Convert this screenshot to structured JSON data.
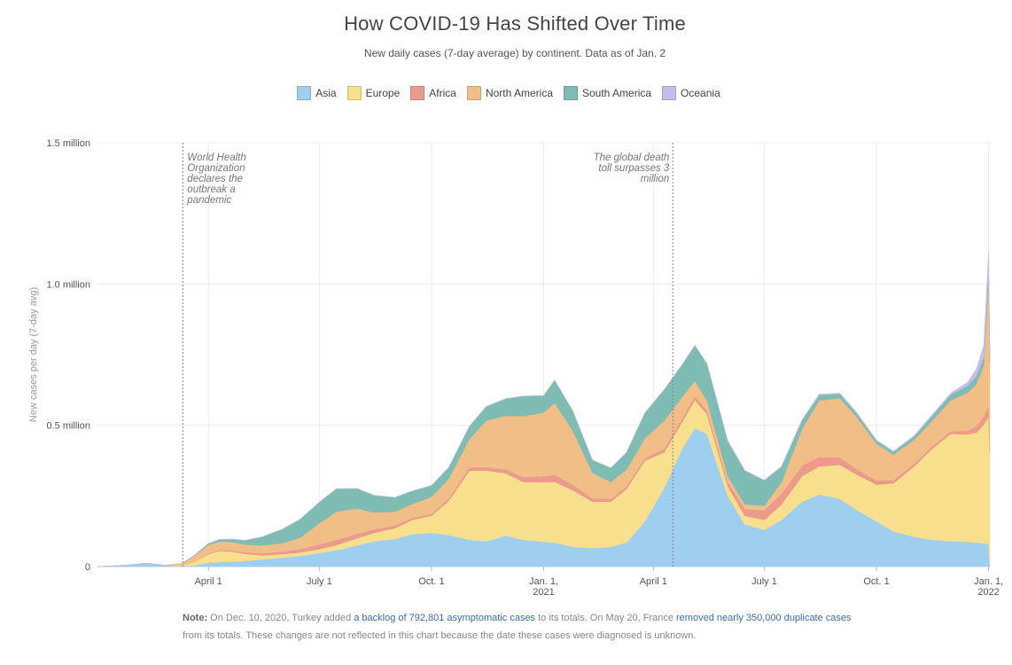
{
  "header": {
    "title": "How COVID-19 Has Shifted Over Time",
    "subtitle": "New daily cases (7-day average) by continent. Data as of Jan. 2"
  },
  "legend": [
    {
      "name": "Asia",
      "color": "#9ecfee"
    },
    {
      "name": "Europe",
      "color": "#f7df8e"
    },
    {
      "name": "Africa",
      "color": "#eb9a8c"
    },
    {
      "name": "North America",
      "color": "#f1be87"
    },
    {
      "name": "South America",
      "color": "#7fbcb4"
    },
    {
      "name": "Oceania",
      "color": "#c3bfe9"
    }
  ],
  "note": {
    "label": "Note:",
    "t1": " On Dec. 10, 2020, Turkey added ",
    "link1": "a backlog of 792,801 asymptomatic cases",
    "t2": " to its totals. On May 20, France ",
    "link2": "removed nearly 350,000 duplicate cases",
    "t3": " from its totals. These changes are not reflected in this chart because the date these cases were diagnosed is unknown."
  },
  "chart_data": {
    "type": "area",
    "stacked": true,
    "title": "How COVID-19 Has Shifted Over Time",
    "ylabel": "New cases per day (7-day avg)",
    "ylim": [
      0,
      1500000
    ],
    "xlim": [
      "2020-01-01",
      "2022-01-02"
    ],
    "grid": true,
    "legend_position": "top",
    "y_ticks": [
      {
        "value": 0,
        "label": "0"
      },
      {
        "value": 500000,
        "label": "0.5 million"
      },
      {
        "value": 1000000,
        "label": "1.0 million"
      },
      {
        "value": 1500000,
        "label": "1.5 million"
      }
    ],
    "x_ticks": [
      {
        "date": "2020-04-01",
        "label": "April 1",
        "sublabel": ""
      },
      {
        "date": "2020-07-01",
        "label": "July 1",
        "sublabel": ""
      },
      {
        "date": "2020-10-01",
        "label": "Oct. 1",
        "sublabel": ""
      },
      {
        "date": "2021-01-01",
        "label": "Jan. 1,",
        "sublabel": "2021"
      },
      {
        "date": "2021-04-01",
        "label": "April 1",
        "sublabel": ""
      },
      {
        "date": "2021-07-01",
        "label": "July 1",
        "sublabel": ""
      },
      {
        "date": "2021-10-01",
        "label": "Oct. 1",
        "sublabel": ""
      },
      {
        "date": "2022-01-01",
        "label": "Jan. 1,",
        "sublabel": "2022"
      }
    ],
    "annotations": [
      {
        "date": "2020-03-11",
        "anchor": "start",
        "lines": [
          "World Health",
          "Organization",
          "declares the",
          "outbreak a",
          "pandemic"
        ]
      },
      {
        "date": "2021-04-17",
        "anchor": "end",
        "lines": [
          "The global death",
          "toll surpasses 3",
          "million"
        ]
      }
    ],
    "x": [
      "2020-01-01",
      "2020-01-25",
      "2020-02-10",
      "2020-02-25",
      "2020-03-10",
      "2020-03-20",
      "2020-04-01",
      "2020-04-10",
      "2020-04-20",
      "2020-05-01",
      "2020-05-15",
      "2020-06-01",
      "2020-06-15",
      "2020-07-01",
      "2020-07-15",
      "2020-08-01",
      "2020-08-15",
      "2020-09-01",
      "2020-09-15",
      "2020-10-01",
      "2020-10-15",
      "2020-11-01",
      "2020-11-15",
      "2020-12-01",
      "2020-12-15",
      "2021-01-01",
      "2021-01-10",
      "2021-01-25",
      "2021-02-10",
      "2021-02-25",
      "2021-03-10",
      "2021-03-25",
      "2021-04-10",
      "2021-04-25",
      "2021-05-05",
      "2021-05-15",
      "2021-06-01",
      "2021-06-15",
      "2021-07-01",
      "2021-07-15",
      "2021-08-01",
      "2021-08-15",
      "2021-09-01",
      "2021-09-15",
      "2021-10-01",
      "2021-10-15",
      "2021-11-01",
      "2021-11-15",
      "2021-12-01",
      "2021-12-15",
      "2021-12-22",
      "2021-12-28",
      "2022-01-01",
      "2022-01-02"
    ],
    "series": [
      {
        "name": "Asia",
        "values": [
          0,
          5000,
          12000,
          4000,
          2000,
          4000,
          14000,
          16000,
          18000,
          20000,
          25000,
          32000,
          38000,
          48000,
          58000,
          75000,
          90000,
          98000,
          115000,
          120000,
          112000,
          95000,
          90000,
          110000,
          95000,
          88000,
          85000,
          70000,
          65000,
          70000,
          85000,
          160000,
          280000,
          420000,
          490000,
          470000,
          250000,
          150000,
          130000,
          165000,
          230000,
          255000,
          240000,
          200000,
          160000,
          125000,
          105000,
          95000,
          90000,
          88000,
          85000,
          82000,
          80000,
          5000
        ]
      },
      {
        "name": "Europe",
        "values": [
          0,
          0,
          0,
          500,
          4000,
          12000,
          30000,
          40000,
          35000,
          25000,
          15000,
          12000,
          12000,
          14000,
          18000,
          25000,
          30000,
          38000,
          50000,
          60000,
          120000,
          245000,
          250000,
          220000,
          205000,
          210000,
          215000,
          200000,
          165000,
          160000,
          190000,
          215000,
          125000,
          95000,
          100000,
          70000,
          35000,
          30000,
          35000,
          55000,
          90000,
          100000,
          120000,
          125000,
          130000,
          170000,
          250000,
          320000,
          380000,
          380000,
          390000,
          420000,
          450000,
          400000
        ]
      },
      {
        "name": "Africa",
        "values": [
          0,
          0,
          0,
          0,
          200,
          1000,
          2500,
          3000,
          4000,
          5000,
          7000,
          9000,
          12000,
          16000,
          19000,
          16000,
          12000,
          9000,
          7000,
          7000,
          8000,
          11000,
          12000,
          14000,
          18000,
          22000,
          25000,
          20000,
          12000,
          9000,
          9000,
          9000,
          12000,
          12000,
          13000,
          13000,
          15000,
          25000,
          35000,
          38000,
          38000,
          33000,
          26000,
          19000,
          15000,
          11000,
          9000,
          8000,
          9000,
          13000,
          22000,
          30000,
          40000,
          20000
        ]
      },
      {
        "name": "North America",
        "values": [
          0,
          0,
          0,
          200,
          4000,
          20000,
          30000,
          30000,
          30000,
          28000,
          28000,
          30000,
          40000,
          75000,
          100000,
          90000,
          60000,
          50000,
          50000,
          60000,
          70000,
          100000,
          165000,
          190000,
          215000,
          225000,
          255000,
          190000,
          90000,
          60000,
          60000,
          70000,
          100000,
          75000,
          55000,
          35000,
          20000,
          15000,
          15000,
          40000,
          130000,
          200000,
          210000,
          185000,
          130000,
          90000,
          85000,
          90000,
          110000,
          135000,
          150000,
          180000,
          450000,
          300000
        ]
      },
      {
        "name": "South America",
        "values": [
          0,
          0,
          0,
          0,
          500,
          1500,
          5000,
          7000,
          10000,
          15000,
          30000,
          50000,
          65000,
          75000,
          80000,
          70000,
          60000,
          50000,
          45000,
          40000,
          40000,
          45000,
          50000,
          60000,
          70000,
          60000,
          80000,
          70000,
          45000,
          50000,
          60000,
          90000,
          110000,
          115000,
          125000,
          130000,
          125000,
          120000,
          90000,
          55000,
          30000,
          20000,
          15000,
          12000,
          10000,
          10000,
          12000,
          18000,
          20000,
          25000,
          28000,
          30000,
          35000,
          20000
        ]
      },
      {
        "name": "Oceania",
        "values": [
          0,
          0,
          0,
          0,
          100,
          300,
          500,
          300,
          100,
          50,
          50,
          50,
          100,
          300,
          700,
          500,
          300,
          100,
          50,
          50,
          50,
          50,
          50,
          50,
          50,
          50,
          50,
          50,
          50,
          50,
          50,
          50,
          50,
          50,
          50,
          50,
          200,
          500,
          1000,
          1500,
          2000,
          2500,
          3000,
          3000,
          3000,
          3000,
          3000,
          3500,
          5000,
          12000,
          25000,
          40000,
          60000,
          30000
        ]
      }
    ]
  }
}
